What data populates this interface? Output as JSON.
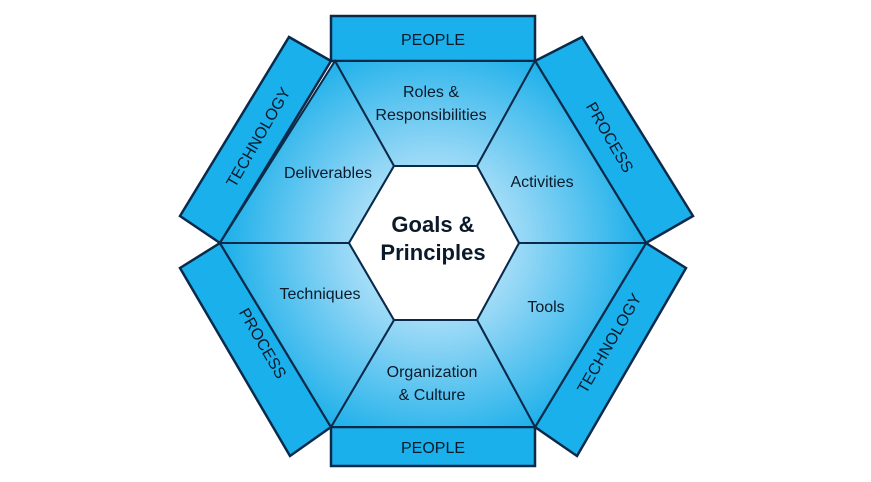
{
  "diagram": {
    "center": {
      "line1": "Goals &",
      "line2": "Principles"
    },
    "segments": {
      "top": {
        "line1": "Roles &",
        "line2": "Responsibilities"
      },
      "upper_right": {
        "line1": "Activities"
      },
      "lower_right": {
        "line1": "Tools"
      },
      "bottom": {
        "line1": "Organization",
        "line2": "& Culture"
      },
      "lower_left": {
        "line1": "Techniques"
      },
      "upper_left": {
        "line1": "Deliverables"
      }
    },
    "bands": {
      "top": "PEOPLE",
      "upper_right": "PROCESS",
      "lower_right": "TECHNOLOGY",
      "bottom": "PEOPLE",
      "lower_left": "PROCESS",
      "upper_left": "TECHNOLOGY"
    },
    "colors": {
      "band_fill": "#1ab0ec",
      "segment_light": "#e6f7fe",
      "segment_dark": "#17aee9",
      "outline": "#0b2a4a"
    }
  }
}
